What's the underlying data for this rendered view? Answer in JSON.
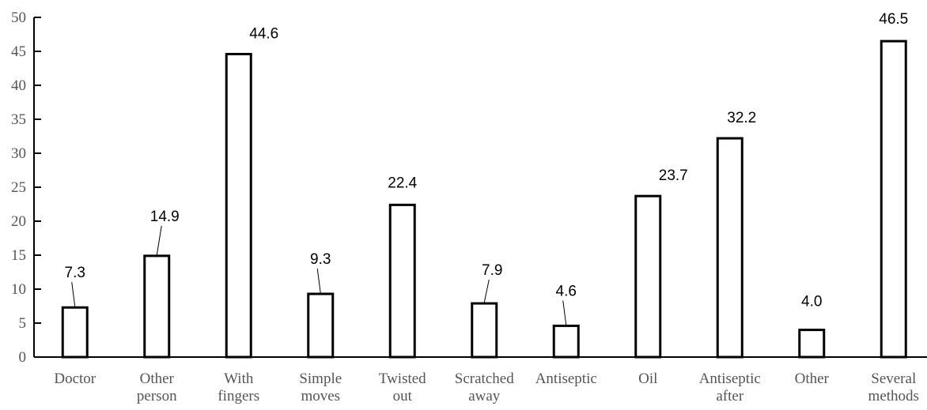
{
  "chart_data": {
    "type": "bar",
    "categories": [
      [
        "Doctor"
      ],
      [
        "Other",
        "person"
      ],
      [
        "With",
        "fingers"
      ],
      [
        "Simple",
        "moves"
      ],
      [
        "Twisted",
        "out"
      ],
      [
        "Scratched",
        "away"
      ],
      [
        "Antiseptic"
      ],
      [
        "Oil"
      ],
      [
        "Antiseptic",
        "after"
      ],
      [
        "Other"
      ],
      [
        "Several",
        "methods"
      ]
    ],
    "values": [
      7.3,
      14.9,
      44.6,
      9.3,
      22.4,
      7.9,
      4.6,
      23.7,
      32.2,
      4.0,
      46.5
    ],
    "data_labels": [
      "7.3",
      "14.9",
      "44.6",
      "9.3",
      "22.4",
      "7.9",
      "4.6",
      "23.7",
      "32.2",
      "4.0",
      "46.5"
    ],
    "yticks": [
      0,
      5,
      10,
      15,
      20,
      25,
      30,
      35,
      40,
      45,
      50
    ],
    "ylim": [
      0,
      50
    ],
    "title": "",
    "xlabel": "",
    "ylabel": "",
    "grid": false,
    "legend": "none",
    "colors": {
      "bar_fill": "#ffffff",
      "bar_stroke": "#000000",
      "tick_text": "#555555"
    }
  }
}
